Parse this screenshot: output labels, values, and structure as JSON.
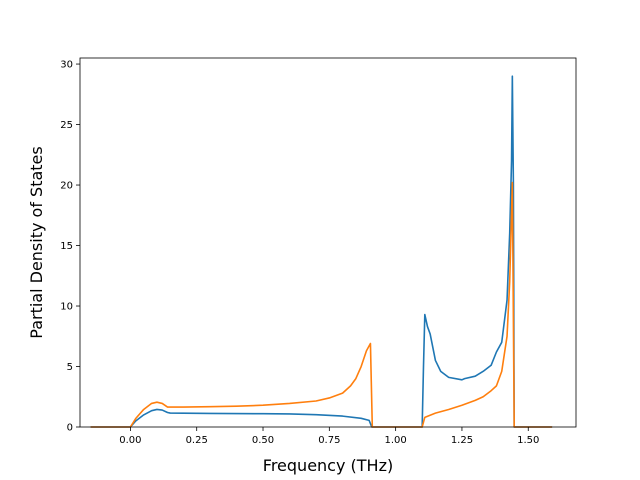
{
  "chart_data": {
    "type": "line",
    "title": "",
    "xlabel": "Frequency (THz)",
    "ylabel": "Partial Density of States",
    "xlim": [
      -0.19,
      1.68
    ],
    "ylim": [
      0,
      30.5
    ],
    "xticks": [
      0.0,
      0.25,
      0.5,
      0.75,
      1.0,
      1.25,
      1.5
    ],
    "xtick_labels": [
      "0.00",
      "0.25",
      "0.50",
      "0.75",
      "1.00",
      "1.25",
      "1.50"
    ],
    "yticks": [
      0,
      5,
      10,
      15,
      20,
      25,
      30
    ],
    "ytick_labels": [
      "0",
      "5",
      "10",
      "15",
      "20",
      "25",
      "30"
    ],
    "grid": false,
    "series": [
      {
        "color": "#1f77b4",
        "points": [
          [
            -0.15,
            0
          ],
          [
            0.0,
            0
          ],
          [
            0.02,
            0.5
          ],
          [
            0.05,
            1.0
          ],
          [
            0.08,
            1.35
          ],
          [
            0.1,
            1.45
          ],
          [
            0.12,
            1.4
          ],
          [
            0.14,
            1.2
          ],
          [
            0.15,
            1.15
          ],
          [
            0.3,
            1.12
          ],
          [
            0.5,
            1.1
          ],
          [
            0.6,
            1.08
          ],
          [
            0.7,
            1.02
          ],
          [
            0.8,
            0.9
          ],
          [
            0.87,
            0.72
          ],
          [
            0.9,
            0.55
          ],
          [
            0.91,
            0
          ],
          [
            1.1,
            0
          ],
          [
            1.105,
            5.0
          ],
          [
            1.11,
            9.3
          ],
          [
            1.12,
            8.3
          ],
          [
            1.13,
            7.7
          ],
          [
            1.15,
            5.5
          ],
          [
            1.17,
            4.6
          ],
          [
            1.2,
            4.1
          ],
          [
            1.25,
            3.9
          ],
          [
            1.26,
            4.0
          ],
          [
            1.3,
            4.2
          ],
          [
            1.33,
            4.6
          ],
          [
            1.36,
            5.1
          ],
          [
            1.38,
            6.2
          ],
          [
            1.4,
            7.0
          ],
          [
            1.42,
            10.5
          ],
          [
            1.43,
            16.0
          ],
          [
            1.437,
            22.0
          ],
          [
            1.44,
            29.0
          ],
          [
            1.444,
            20.0
          ],
          [
            1.447,
            0
          ],
          [
            1.59,
            0
          ]
        ]
      },
      {
        "color": "#ff7f0e",
        "points": [
          [
            -0.15,
            0
          ],
          [
            0.0,
            0
          ],
          [
            0.02,
            0.7
          ],
          [
            0.05,
            1.45
          ],
          [
            0.08,
            1.95
          ],
          [
            0.1,
            2.05
          ],
          [
            0.12,
            1.95
          ],
          [
            0.14,
            1.65
          ],
          [
            0.2,
            1.65
          ],
          [
            0.3,
            1.68
          ],
          [
            0.4,
            1.72
          ],
          [
            0.5,
            1.8
          ],
          [
            0.6,
            1.95
          ],
          [
            0.7,
            2.15
          ],
          [
            0.75,
            2.4
          ],
          [
            0.8,
            2.8
          ],
          [
            0.83,
            3.4
          ],
          [
            0.85,
            4.0
          ],
          [
            0.87,
            5.0
          ],
          [
            0.89,
            6.3
          ],
          [
            0.905,
            6.9
          ],
          [
            0.912,
            0
          ],
          [
            1.1,
            0
          ],
          [
            1.11,
            0.8
          ],
          [
            1.15,
            1.15
          ],
          [
            1.2,
            1.45
          ],
          [
            1.25,
            1.8
          ],
          [
            1.3,
            2.2
          ],
          [
            1.33,
            2.5
          ],
          [
            1.36,
            3.0
          ],
          [
            1.38,
            3.4
          ],
          [
            1.4,
            4.6
          ],
          [
            1.42,
            7.5
          ],
          [
            1.43,
            12.0
          ],
          [
            1.44,
            20.2
          ],
          [
            1.447,
            0
          ],
          [
            1.59,
            0
          ]
        ]
      }
    ]
  }
}
